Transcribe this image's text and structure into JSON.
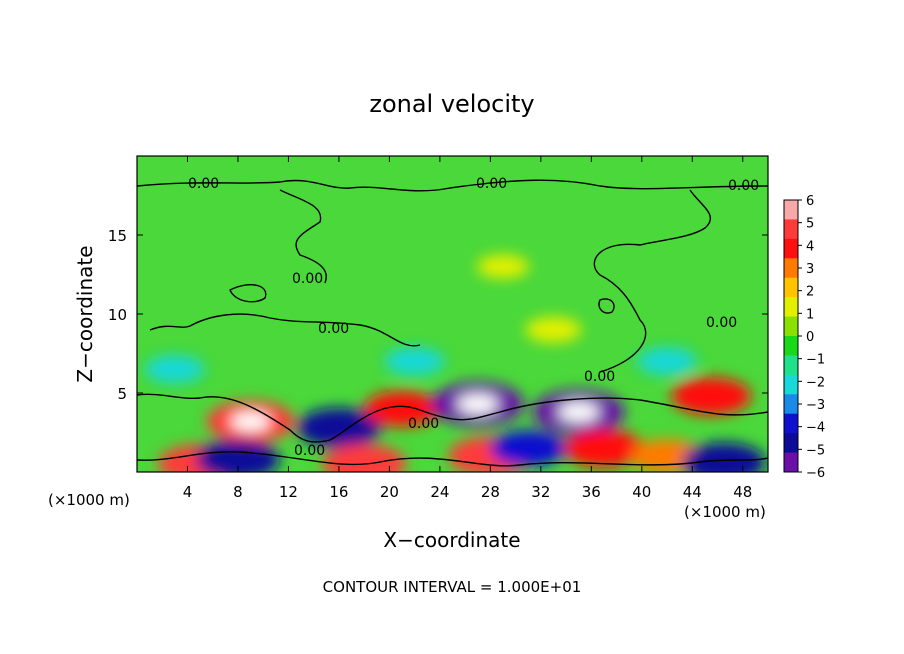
{
  "chart_data": {
    "type": "heatmap",
    "title": "zonal velocity",
    "xlabel": "X−coordinate",
    "ylabel": "Z−coordinate",
    "x_unit_left": "(×1000 m)",
    "x_unit_right": "(×1000 m)",
    "footer": "CONTOUR INTERVAL = 1.000E+01",
    "xlim": [
      0,
      50
    ],
    "ylim": [
      0,
      20
    ],
    "x_ticks": [
      4,
      8,
      12,
      16,
      20,
      24,
      28,
      32,
      36,
      40,
      44,
      48
    ],
    "y_ticks": [
      5,
      10,
      15
    ],
    "colorbar": {
      "ticks": [
        6,
        5,
        4,
        3,
        2,
        1,
        0,
        -1,
        -2,
        -3,
        -4,
        -5,
        -6
      ],
      "tick_labels": [
        "6",
        "5",
        "4",
        "3",
        "2",
        "1",
        "0",
        "−1",
        "−2",
        "−3",
        "−4",
        "−5",
        "−6"
      ],
      "colors": [
        "#f7a8a8",
        "#ff3a3a",
        "#ff1010",
        "#ff7a00",
        "#ffc400",
        "#e2f000",
        "#8ae000",
        "#18d818",
        "#20e08a",
        "#18d8d8",
        "#1a8ae8",
        "#1010d0",
        "#0c0c98",
        "#6a10a8"
      ]
    },
    "contour_labels": [
      "0.00",
      "0.00",
      "0.00",
      "0.00",
      "0.00",
      "0.00",
      "0.00",
      "0.00",
      "0.00"
    ],
    "features": [
      {
        "x": 9.0,
        "y": 3.2,
        "value": 5.5
      },
      {
        "x": 5.0,
        "y": 0.5,
        "value": 5.0
      },
      {
        "x": 8.0,
        "y": 0.8,
        "value": -5.0
      },
      {
        "x": 16.0,
        "y": 2.8,
        "value": -5.0
      },
      {
        "x": 18.0,
        "y": 0.5,
        "value": 5.0
      },
      {
        "x": 21.0,
        "y": 4.0,
        "value": 4.0
      },
      {
        "x": 27.0,
        "y": 4.3,
        "value": -6.0
      },
      {
        "x": 28.0,
        "y": 1.0,
        "value": 5.0
      },
      {
        "x": 31.0,
        "y": 1.5,
        "value": -4.0
      },
      {
        "x": 35.0,
        "y": 3.8,
        "value": -6.0
      },
      {
        "x": 37.0,
        "y": 1.5,
        "value": 4.5
      },
      {
        "x": 42.0,
        "y": 1.0,
        "value": 3.5
      },
      {
        "x": 45.5,
        "y": 4.8,
        "value": 4.5
      },
      {
        "x": 46.5,
        "y": 0.6,
        "value": -5.0
      },
      {
        "x": 3.0,
        "y": 6.5,
        "value": -2.0
      },
      {
        "x": 22.0,
        "y": 7.0,
        "value": -2.0
      },
      {
        "x": 33.0,
        "y": 9.0,
        "value": 1.5
      },
      {
        "x": 42.0,
        "y": 7.0,
        "value": -2.0
      },
      {
        "x": 29.0,
        "y": 13.0,
        "value": 1.0
      }
    ]
  }
}
